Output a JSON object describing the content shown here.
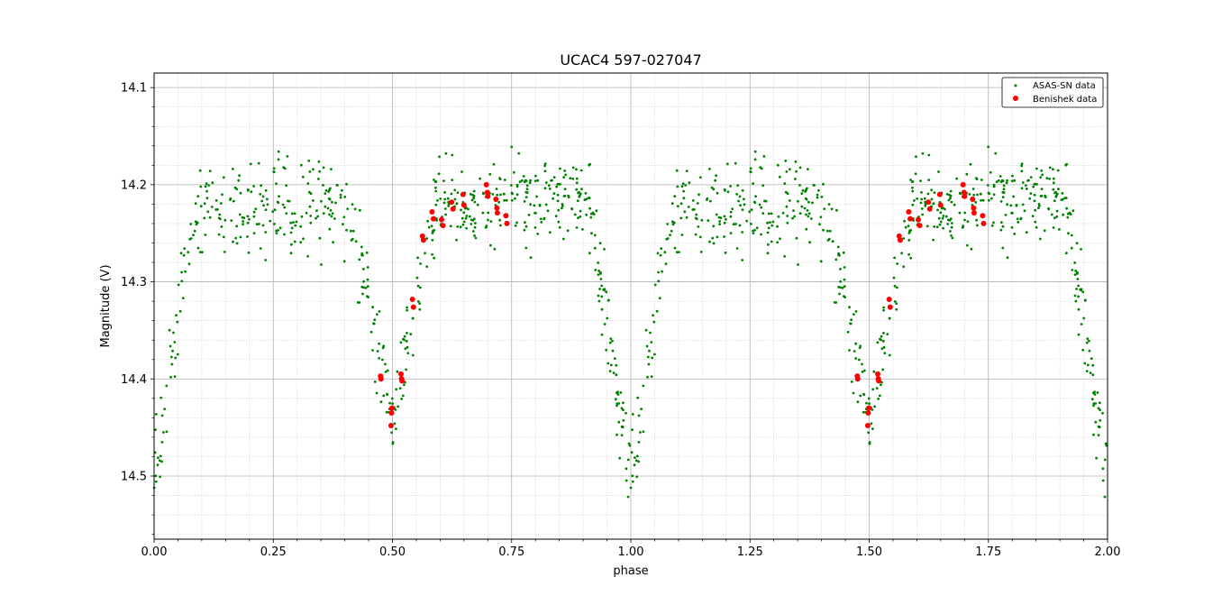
{
  "chart_data": {
    "type": "scatter",
    "title": "UCAC4 597-027047",
    "xlabel": "phase",
    "ylabel": "Magnitude (V)",
    "xlim": [
      0.0,
      2.0
    ],
    "ylim": [
      14.565,
      14.085
    ],
    "y_inverted": true,
    "grid": true,
    "minor_grid": true,
    "legend_position": "top-right",
    "x_ticks": [
      "0.00",
      "0.25",
      "0.50",
      "0.75",
      "1.00",
      "1.25",
      "1.50",
      "1.75",
      "2.00"
    ],
    "x_tick_values": [
      0.0,
      0.25,
      0.5,
      0.75,
      1.0,
      1.25,
      1.5,
      1.75,
      2.0
    ],
    "y_ticks": [
      "14.1",
      "14.2",
      "14.3",
      "14.4",
      "14.5"
    ],
    "y_tick_values": [
      14.1,
      14.2,
      14.3,
      14.4,
      14.5
    ],
    "series": [
      {
        "name": "ASAS-SN data",
        "color": "#008000",
        "marker": "small-dot",
        "phase_repeat": 1.0,
        "model": {
          "max_mag": 14.22,
          "primary_min_phase": 0.0,
          "primary_depth": 0.28,
          "secondary_min_phase": 0.5,
          "secondary_depth": 0.22,
          "eclipse_half_width": 0.09,
          "scatter": 0.045,
          "count": 640
        }
      },
      {
        "name": "Benishek data",
        "color": "#ff0000",
        "marker": "dot",
        "phase_repeat": 1.0,
        "x": [
          0.475,
          0.476,
          0.497,
          0.498,
          0.499,
          0.518,
          0.519,
          0.52,
          0.542,
          0.544,
          0.563,
          0.565,
          0.583,
          0.586,
          0.603,
          0.606,
          0.624,
          0.627,
          0.648,
          0.65,
          0.697,
          0.699,
          0.7,
          0.717,
          0.719,
          0.72,
          0.738,
          0.74
        ],
        "y": [
          14.397,
          14.4,
          14.448,
          14.435,
          14.43,
          14.395,
          14.4,
          14.402,
          14.318,
          14.326,
          14.253,
          14.257,
          14.228,
          14.235,
          14.236,
          14.242,
          14.218,
          14.225,
          14.21,
          14.221,
          14.2,
          14.208,
          14.212,
          14.215,
          14.224,
          14.229,
          14.232,
          14.24
        ]
      }
    ]
  }
}
